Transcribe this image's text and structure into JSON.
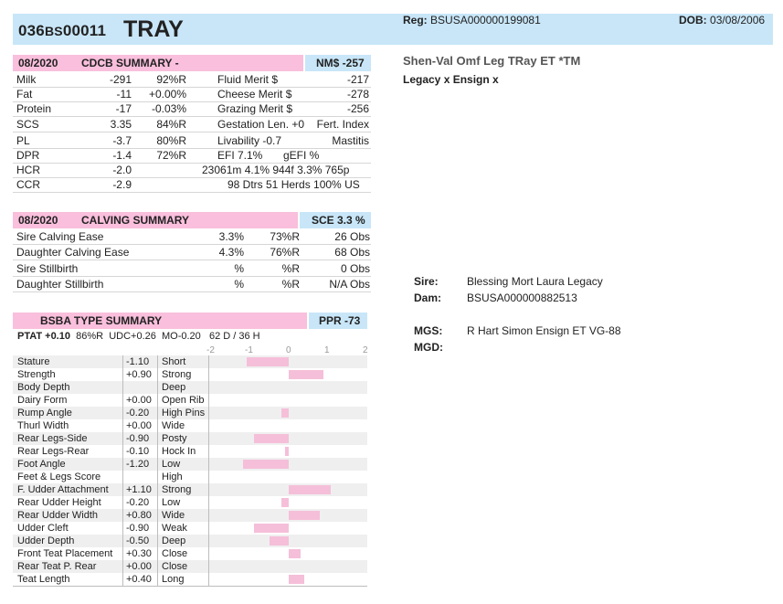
{
  "header": {
    "num_prefix": "036",
    "num_breed": "BS",
    "num_suffix": "00011",
    "name": "TRAY",
    "reg_label": "Reg:",
    "reg_value": "BSUSA000000199081",
    "dob_label": "DOB:",
    "dob_value": "03/08/2006"
  },
  "full_name": "Shen-Val Omf Leg TRay ET *TM",
  "pedigree_line": "Legacy x Ensign x",
  "cdcb": {
    "date": "08/2020",
    "title": "CDCB SUMMARY -",
    "nm_badge": "NM$ -257",
    "rows": [
      {
        "trait": "Milk",
        "value": "-291",
        "rel": "92%R",
        "c2": "Fluid Merit $",
        "c3": "",
        "c4": "-217"
      },
      {
        "trait": "Fat",
        "value": "-11",
        "rel": "+0.00%",
        "c2": "Cheese Merit $",
        "c3": "",
        "c4": "-278"
      },
      {
        "trait": "Protein",
        "value": "-17",
        "rel": "-0.03%",
        "c2": "Grazing Merit $",
        "c3": "",
        "c4": "-256"
      },
      {
        "trait": "SCS",
        "value": "3.35",
        "rel": "84%R",
        "c2": "Gestation Len. +0",
        "c3": "",
        "c4": "Fert. Index"
      },
      {
        "trait": "PL",
        "value": "-3.7",
        "rel": "80%R",
        "c2": "Livability   -0.7",
        "c3": "",
        "c4": "Mastitis"
      },
      {
        "trait": "DPR",
        "value": "-1.4",
        "rel": "72%R",
        "c2": "EFI  7.1%",
        "c3": "gEFI  %",
        "c4": ""
      },
      {
        "trait": "HCR",
        "value": "-2.0",
        "rel": "",
        "c2": "23061m  4.1%  944f  3.3%  765p",
        "c3": "",
        "c4": ""
      },
      {
        "trait": "CCR",
        "value": "-2.9",
        "rel": "",
        "c2": "98 Dtrs  51 Herds  100% US",
        "c3": "",
        "c4": ""
      }
    ]
  },
  "calving": {
    "date": "08/2020",
    "title": "CALVING SUMMARY",
    "sce_badge": "SCE 3.3 %",
    "rows": [
      {
        "trait": "Sire Calving Ease",
        "pct": "3.3%",
        "rel": "73%R",
        "obs": "26 Obs"
      },
      {
        "trait": "Daughter Calving Ease",
        "pct": "4.3%",
        "rel": "76%R",
        "obs": "68 Obs"
      },
      {
        "trait": "Sire Stillbirth",
        "pct": "%",
        "rel": "%R",
        "obs": "0 Obs"
      },
      {
        "trait": "Daughter Stillbirth",
        "pct": "%",
        "rel": "%R",
        "obs": "N/A Obs"
      }
    ]
  },
  "type": {
    "title": "BSBA TYPE SUMMARY",
    "ppr_badge": "PPR -73",
    "ptat": "PTAT +0.10",
    "ptat_rel": "86%R",
    "udc": "UDC+0.26",
    "mo": "MO-0.20",
    "daughters": "62 D / 36 H",
    "axis": [
      "-2",
      "-1",
      "0",
      "1",
      "2"
    ],
    "axis_range": [
      -2,
      2
    ],
    "traits": [
      {
        "name": "Stature",
        "value": "-1.10",
        "desc": "Short",
        "v": -1.1
      },
      {
        "name": "Strength",
        "value": "+0.90",
        "desc": "Strong",
        "v": 0.9
      },
      {
        "name": "Body Depth",
        "value": "",
        "desc": "Deep",
        "v": null
      },
      {
        "name": "Dairy Form",
        "value": "+0.00",
        "desc": "Open Rib",
        "v": 0.0
      },
      {
        "name": "Rump Angle",
        "value": "-0.20",
        "desc": "High Pins",
        "v": -0.2
      },
      {
        "name": "Thurl Width",
        "value": "+0.00",
        "desc": "Wide",
        "v": 0.0
      },
      {
        "name": "Rear Legs-Side",
        "value": "-0.90",
        "desc": "Posty",
        "v": -0.9
      },
      {
        "name": "Rear Legs-Rear",
        "value": "-0.10",
        "desc": "Hock In",
        "v": -0.1
      },
      {
        "name": "Foot Angle",
        "value": "-1.20",
        "desc": "Low",
        "v": -1.2
      },
      {
        "name": "Feet & Legs Score",
        "value": "",
        "desc": "High",
        "v": null
      },
      {
        "name": "F. Udder Attachment",
        "value": "+1.10",
        "desc": "Strong",
        "v": 1.1
      },
      {
        "name": "Rear Udder Height",
        "value": "-0.20",
        "desc": "Low",
        "v": -0.2
      },
      {
        "name": "Rear Udder Width",
        "value": "+0.80",
        "desc": "Wide",
        "v": 0.8
      },
      {
        "name": "Udder Cleft",
        "value": "-0.90",
        "desc": "Weak",
        "v": -0.9
      },
      {
        "name": "Udder Depth",
        "value": "-0.50",
        "desc": "Deep",
        "v": -0.5
      },
      {
        "name": "Front Teat Placement",
        "value": "+0.30",
        "desc": "Close",
        "v": 0.3
      },
      {
        "name": "Rear Teat P. Rear",
        "value": "+0.00",
        "desc": "Close",
        "v": 0.0
      },
      {
        "name": "Teat Length",
        "value": "+0.40",
        "desc": "Long",
        "v": 0.4
      }
    ]
  },
  "pedigree": {
    "sire_label": "Sire:",
    "sire_value": "Blessing Mort Laura Legacy",
    "dam_label": "Dam:",
    "dam_value": "BSUSA000000882513",
    "mgs_label": "MGS:",
    "mgs_value": "R Hart Simon Ensign ET VG-88",
    "mgd_label": "MGD:",
    "mgd_value": ""
  },
  "colors": {
    "header_blue": "#c8e6f8",
    "section_pink": "#f9bfdc",
    "bar_pink": "#f5bfd9"
  }
}
